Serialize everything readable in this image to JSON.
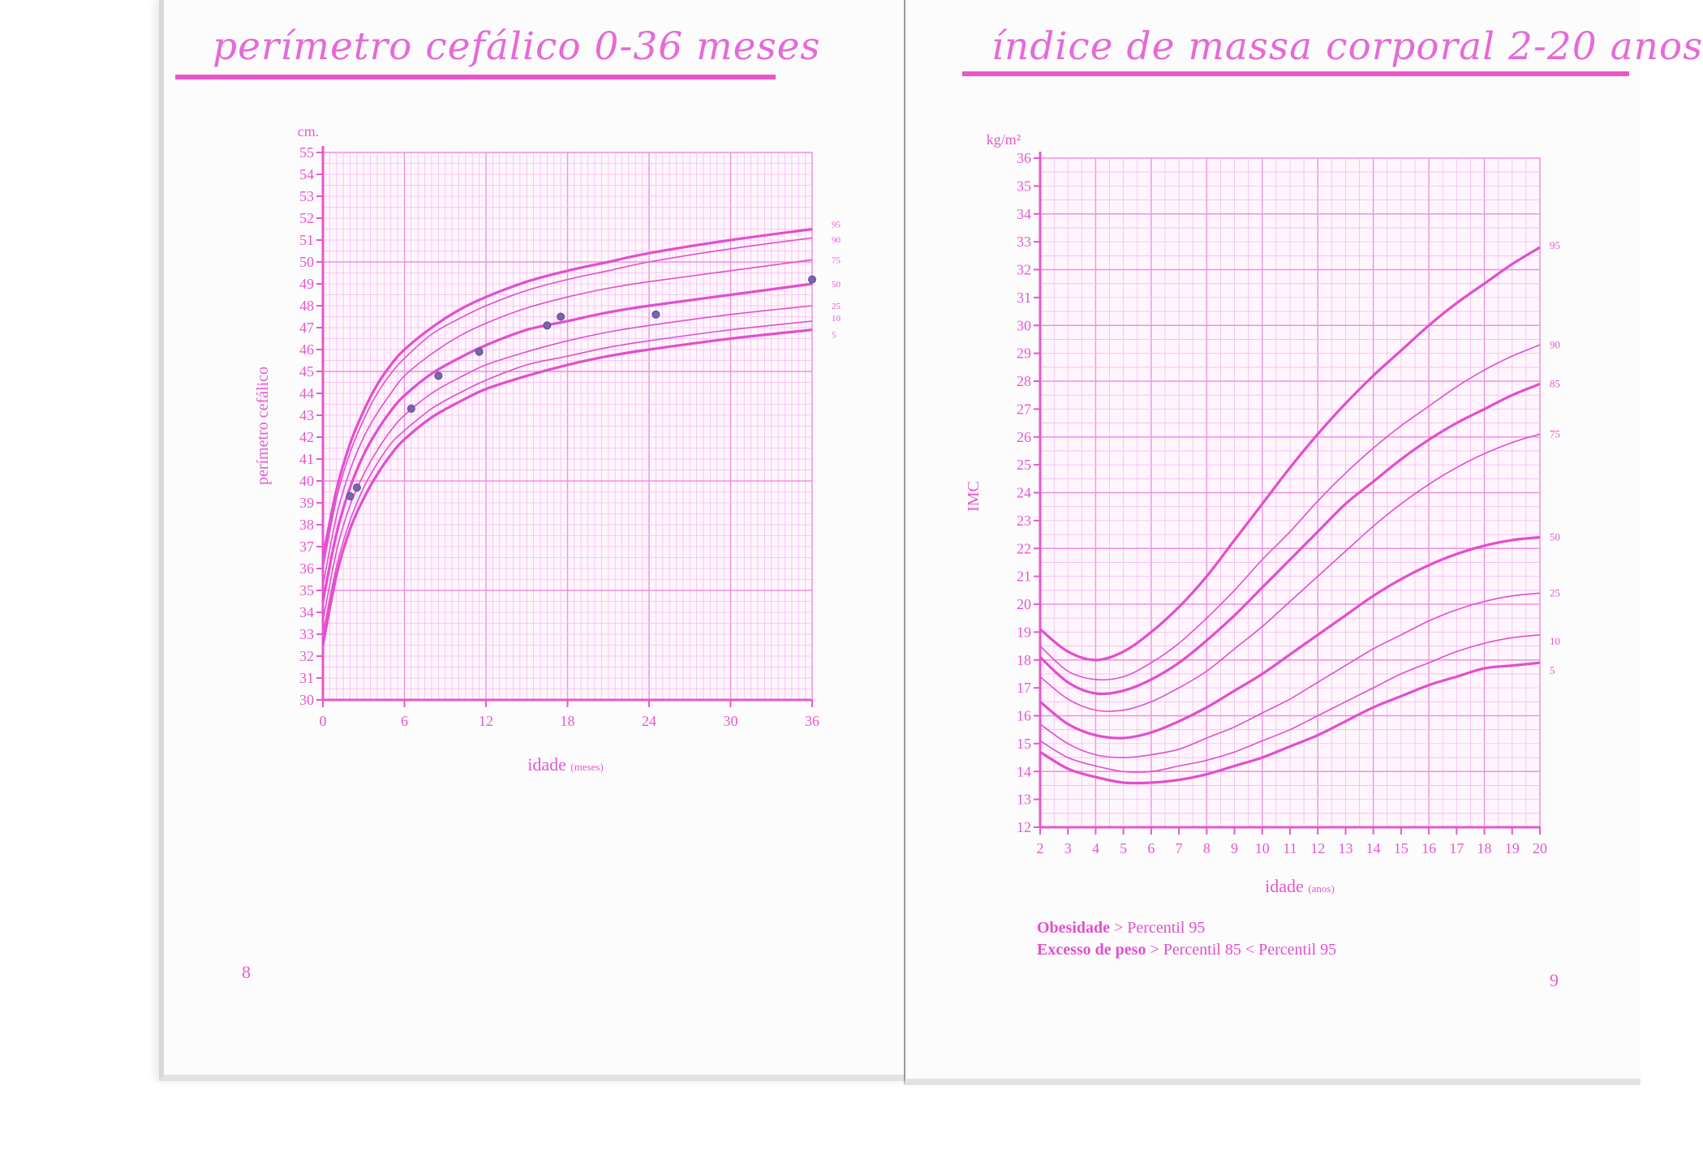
{
  "colors": {
    "accent": "#e558cf",
    "grid": "#f6b8ef",
    "grid_major": "#f08fe0",
    "curve": "#e34dce"
  },
  "left_page": {
    "title": "perímetro cefálico 0-36 meses",
    "page_number": "8"
  },
  "right_page": {
    "title": "índice de massa corporal 2-20 anos",
    "page_number": "9",
    "notes": [
      {
        "term": "Obesidade",
        "text": " > Percentil 95"
      },
      {
        "term": "Excesso de peso",
        "text": " > Percentil 85 < Percentil 95"
      }
    ]
  },
  "chart_data": [
    {
      "type": "line",
      "unit_label": "cm.",
      "xlabel": "idade",
      "xlabel_unit": "(meses)",
      "ylabel": "perímetro cefálico",
      "xlim": [
        0,
        36
      ],
      "ylim": [
        30,
        55
      ],
      "x_ticks": [
        0,
        6,
        12,
        18,
        24,
        30,
        36
      ],
      "y_ticks": [
        30,
        31,
        32,
        33,
        34,
        35,
        36,
        37,
        38,
        39,
        40,
        41,
        42,
        43,
        44,
        45,
        46,
        47,
        48,
        49,
        50,
        51,
        52,
        53,
        54,
        55
      ],
      "series": [
        {
          "name": "95",
          "x": [
            0,
            1,
            2,
            3,
            4,
            5,
            6,
            8,
            10,
            12,
            15,
            18,
            21,
            24,
            30,
            36
          ],
          "y": [
            36.5,
            39.6,
            41.7,
            43.2,
            44.4,
            45.3,
            46.0,
            47.0,
            47.8,
            48.4,
            49.1,
            49.6,
            50.0,
            50.4,
            51.0,
            51.5
          ]
        },
        {
          "name": "90",
          "x": [
            0,
            1,
            2,
            3,
            4,
            5,
            6,
            8,
            10,
            12,
            15,
            18,
            21,
            24,
            30,
            36
          ],
          "y": [
            36.0,
            39.2,
            41.3,
            42.8,
            44.0,
            44.9,
            45.6,
            46.7,
            47.4,
            48.0,
            48.7,
            49.2,
            49.6,
            50.0,
            50.6,
            51.1
          ]
        },
        {
          "name": "75",
          "x": [
            0,
            1,
            2,
            3,
            4,
            5,
            6,
            8,
            10,
            12,
            15,
            18,
            21,
            24,
            30,
            36
          ],
          "y": [
            35.2,
            38.4,
            40.5,
            42.0,
            43.1,
            44.0,
            44.8,
            45.8,
            46.6,
            47.2,
            47.9,
            48.4,
            48.8,
            49.1,
            49.6,
            50.1
          ]
        },
        {
          "name": "50",
          "x": [
            0,
            1,
            2,
            3,
            4,
            5,
            6,
            8,
            10,
            12,
            15,
            18,
            21,
            24,
            30,
            36
          ],
          "y": [
            34.5,
            37.6,
            39.7,
            41.2,
            42.3,
            43.2,
            43.9,
            44.9,
            45.6,
            46.2,
            46.9,
            47.3,
            47.7,
            48.0,
            48.5,
            49.0
          ]
        },
        {
          "name": "25",
          "x": [
            0,
            1,
            2,
            3,
            4,
            5,
            6,
            8,
            10,
            12,
            15,
            18,
            21,
            24,
            30,
            36
          ],
          "y": [
            33.6,
            36.8,
            38.9,
            40.3,
            41.4,
            42.3,
            43.0,
            44.0,
            44.7,
            45.3,
            45.9,
            46.4,
            46.8,
            47.1,
            47.6,
            48.0
          ]
        },
        {
          "name": "10",
          "x": [
            0,
            1,
            2,
            3,
            4,
            5,
            6,
            8,
            10,
            12,
            15,
            18,
            21,
            24,
            30,
            36
          ],
          "y": [
            33.0,
            36.1,
            38.2,
            39.7,
            40.8,
            41.7,
            42.3,
            43.3,
            44.0,
            44.6,
            45.3,
            45.7,
            46.1,
            46.4,
            46.9,
            47.3
          ]
        },
        {
          "name": "5",
          "x": [
            0,
            1,
            2,
            3,
            4,
            5,
            6,
            8,
            10,
            12,
            15,
            18,
            21,
            24,
            30,
            36
          ],
          "y": [
            32.5,
            35.7,
            37.8,
            39.2,
            40.3,
            41.2,
            41.9,
            42.9,
            43.6,
            44.2,
            44.8,
            45.3,
            45.7,
            46.0,
            46.5,
            46.9
          ]
        }
      ],
      "measurements": {
        "x": [
          2,
          2.5,
          6.5,
          8.5,
          11.5,
          16.5,
          17.5,
          24.5,
          36
        ],
        "y": [
          39.3,
          39.7,
          43.3,
          44.8,
          45.9,
          47.1,
          47.5,
          47.6,
          49.2
        ]
      }
    },
    {
      "type": "line",
      "unit_label": "kg/m²",
      "xlabel": "idade",
      "xlabel_unit": "(anos)",
      "ylabel": "IMC",
      "xlim": [
        2,
        20
      ],
      "ylim": [
        12,
        36
      ],
      "x_ticks": [
        2,
        3,
        4,
        5,
        6,
        7,
        8,
        9,
        10,
        11,
        12,
        13,
        14,
        15,
        16,
        17,
        18,
        19,
        20
      ],
      "y_ticks": [
        12,
        13,
        14,
        15,
        16,
        17,
        18,
        19,
        20,
        21,
        22,
        23,
        24,
        25,
        26,
        27,
        28,
        29,
        30,
        31,
        32,
        33,
        34,
        35,
        36
      ],
      "series": [
        {
          "name": "95",
          "x": [
            2,
            3,
            4,
            5,
            6,
            7,
            8,
            9,
            10,
            11,
            12,
            13,
            14,
            15,
            16,
            17,
            18,
            19,
            20
          ],
          "y": [
            19.1,
            18.3,
            18.0,
            18.3,
            19.0,
            19.9,
            21.0,
            22.3,
            23.6,
            24.9,
            26.1,
            27.2,
            28.2,
            29.1,
            30.0,
            30.8,
            31.5,
            32.2,
            32.8
          ]
        },
        {
          "name": "90",
          "x": [
            2,
            3,
            4,
            5,
            6,
            7,
            8,
            9,
            10,
            11,
            12,
            13,
            14,
            15,
            16,
            17,
            18,
            19,
            20
          ],
          "y": [
            18.5,
            17.6,
            17.3,
            17.4,
            17.9,
            18.6,
            19.5,
            20.5,
            21.6,
            22.6,
            23.7,
            24.7,
            25.6,
            26.4,
            27.1,
            27.8,
            28.4,
            28.9,
            29.3
          ]
        },
        {
          "name": "85",
          "x": [
            2,
            3,
            4,
            5,
            6,
            7,
            8,
            9,
            10,
            11,
            12,
            13,
            14,
            15,
            16,
            17,
            18,
            19,
            20
          ],
          "y": [
            18.1,
            17.2,
            16.8,
            16.9,
            17.3,
            17.9,
            18.7,
            19.6,
            20.6,
            21.6,
            22.6,
            23.6,
            24.4,
            25.2,
            25.9,
            26.5,
            27.0,
            27.5,
            27.9
          ]
        },
        {
          "name": "75",
          "x": [
            2,
            3,
            4,
            5,
            6,
            7,
            8,
            9,
            10,
            11,
            12,
            13,
            14,
            15,
            16,
            17,
            18,
            19,
            20
          ],
          "y": [
            17.4,
            16.6,
            16.2,
            16.2,
            16.5,
            17.0,
            17.6,
            18.4,
            19.2,
            20.1,
            21.0,
            21.9,
            22.8,
            23.6,
            24.3,
            24.9,
            25.4,
            25.8,
            26.1
          ]
        },
        {
          "name": "50",
          "x": [
            2,
            3,
            4,
            5,
            6,
            7,
            8,
            9,
            10,
            11,
            12,
            13,
            14,
            15,
            16,
            17,
            18,
            19,
            20
          ],
          "y": [
            16.5,
            15.7,
            15.3,
            15.2,
            15.4,
            15.8,
            16.3,
            16.9,
            17.5,
            18.2,
            18.9,
            19.6,
            20.3,
            20.9,
            21.4,
            21.8,
            22.1,
            22.3,
            22.4
          ]
        },
        {
          "name": "25",
          "x": [
            2,
            3,
            4,
            5,
            6,
            7,
            8,
            9,
            10,
            11,
            12,
            13,
            14,
            15,
            16,
            17,
            18,
            19,
            20
          ],
          "y": [
            15.7,
            15.0,
            14.6,
            14.5,
            14.6,
            14.8,
            15.2,
            15.6,
            16.1,
            16.6,
            17.2,
            17.8,
            18.4,
            18.9,
            19.4,
            19.8,
            20.1,
            20.3,
            20.4
          ]
        },
        {
          "name": "10",
          "x": [
            2,
            3,
            4,
            5,
            6,
            7,
            8,
            9,
            10,
            11,
            12,
            13,
            14,
            15,
            16,
            17,
            18,
            19,
            20
          ],
          "y": [
            15.1,
            14.5,
            14.2,
            14.0,
            14.0,
            14.2,
            14.4,
            14.7,
            15.1,
            15.5,
            16.0,
            16.5,
            17.0,
            17.5,
            17.9,
            18.3,
            18.6,
            18.8,
            18.9
          ]
        },
        {
          "name": "5",
          "x": [
            2,
            3,
            4,
            5,
            6,
            7,
            8,
            9,
            10,
            11,
            12,
            13,
            14,
            15,
            16,
            17,
            18,
            19,
            20
          ],
          "y": [
            14.7,
            14.1,
            13.8,
            13.6,
            13.6,
            13.7,
            13.9,
            14.2,
            14.5,
            14.9,
            15.3,
            15.8,
            16.3,
            16.7,
            17.1,
            17.4,
            17.7,
            17.8,
            17.9
          ]
        }
      ]
    }
  ]
}
